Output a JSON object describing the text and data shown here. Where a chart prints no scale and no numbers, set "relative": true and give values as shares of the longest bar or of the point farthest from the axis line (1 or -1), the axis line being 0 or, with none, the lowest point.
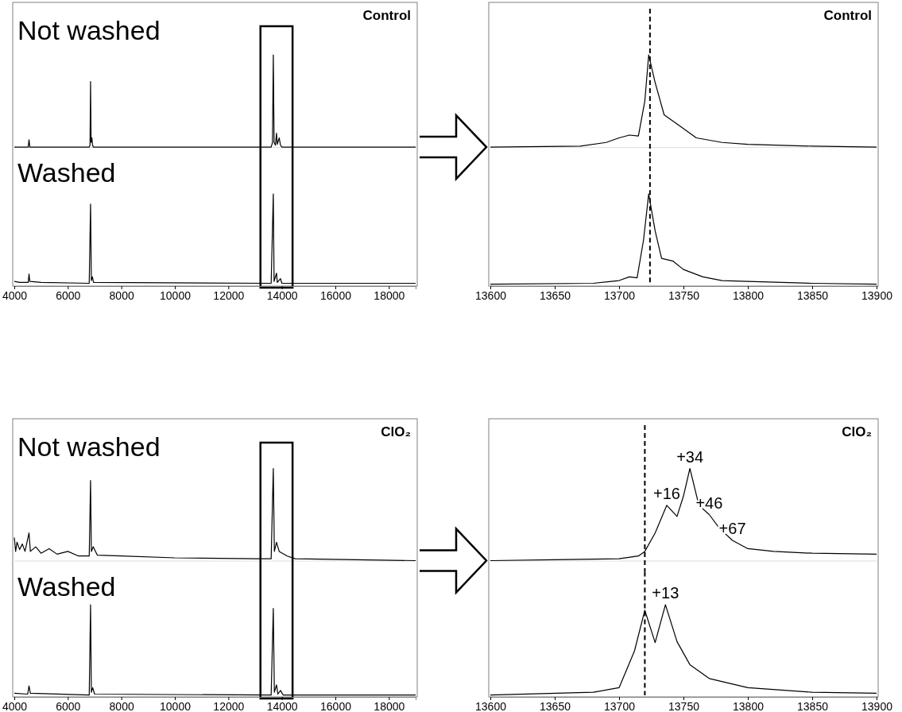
{
  "chart_data": [
    {
      "type": "line",
      "title": "Control",
      "relative": true,
      "tick_labels": false,
      "xlim": [
        4000,
        19000
      ],
      "series": [
        {
          "name": "Not washed",
          "color": "#000000",
          "x": [
            4000,
            4520,
            4550,
            4580,
            6800,
            6830,
            6850,
            6870,
            6900,
            6920,
            6950,
            13600,
            13650,
            13680,
            13710,
            13760,
            13800,
            13830,
            13900,
            13950,
            14000,
            19000
          ],
          "values": [
            0,
            0,
            0.08,
            0,
            0,
            0.02,
            0.71,
            0.05,
            0.1,
            0.03,
            0,
            0,
            0.05,
            1.0,
            0.05,
            0.02,
            0.15,
            0.03,
            0.1,
            0.02,
            0,
            0
          ]
        }
      ]
    },
    {
      "type": "line",
      "relative": true,
      "tick_labels": "x",
      "xlim": [
        4000,
        19000
      ],
      "xticks": [
        4000,
        6000,
        8000,
        10000,
        12000,
        14000,
        16000,
        18000
      ],
      "series": [
        {
          "name": "Washed",
          "color": "#000000",
          "x": [
            4000,
            4200,
            4520,
            4550,
            4580,
            5000,
            6800,
            6850,
            6880,
            6920,
            6960,
            13600,
            13680,
            13710,
            13800,
            13830,
            13950,
            14000,
            19000
          ],
          "values": [
            0.05,
            0.04,
            0.04,
            0.13,
            0.05,
            0.04,
            0.03,
            0.89,
            0.06,
            0.1,
            0.04,
            0.03,
            1.0,
            0.05,
            0.14,
            0.04,
            0.08,
            0.03,
            0.03
          ]
        }
      ]
    },
    {
      "type": "line",
      "title": "Control",
      "relative": true,
      "tick_labels": false,
      "xlim": [
        13600,
        13900
      ],
      "ref_lines": [
        {
          "axis": "x",
          "value": 13724,
          "line_style": "dashed"
        }
      ],
      "series": [
        {
          "color": "#000000",
          "x": [
            13600,
            13670,
            13690,
            13700,
            13708,
            13715,
            13720,
            13723,
            13728,
            13735,
            13745,
            13760,
            13780,
            13800,
            13850,
            13900
          ],
          "values": [
            0,
            0.01,
            0.05,
            0.1,
            0.13,
            0.12,
            0.5,
            1.0,
            0.7,
            0.35,
            0.25,
            0.1,
            0.05,
            0.03,
            0.01,
            0
          ]
        }
      ]
    },
    {
      "type": "line",
      "relative": true,
      "tick_labels": "x",
      "xlim": [
        13600,
        13900
      ],
      "xticks": [
        13600,
        13650,
        13700,
        13750,
        13800,
        13850,
        13900
      ],
      "ref_lines": [
        {
          "axis": "x",
          "value": 13724,
          "line_style": "dashed"
        }
      ],
      "series": [
        {
          "color": "#000000",
          "x": [
            13600,
            13680,
            13700,
            13708,
            13714,
            13719,
            13723,
            13728,
            13733,
            13742,
            13750,
            13765,
            13780,
            13800,
            13850,
            13900
          ],
          "values": [
            0.02,
            0.03,
            0.06,
            0.1,
            0.09,
            0.5,
            1.0,
            0.6,
            0.3,
            0.27,
            0.18,
            0.1,
            0.06,
            0.05,
            0.03,
            0.02
          ]
        }
      ]
    },
    {
      "type": "line",
      "title": "ClO₂",
      "relative": true,
      "tick_labels": false,
      "xlim": [
        4000,
        19000
      ],
      "series": [
        {
          "name": "Not washed",
          "color": "#000000",
          "x": [
            4000,
            4050,
            4100,
            4200,
            4300,
            4400,
            4550,
            4600,
            4800,
            5000,
            5300,
            5600,
            6000,
            6400,
            6800,
            6850,
            6880,
            6950,
            7100,
            8000,
            10000,
            13000,
            13600,
            13680,
            13720,
            13800,
            13900,
            14200,
            14500,
            19000
          ],
          "values": [
            0.25,
            0.1,
            0.2,
            0.12,
            0.18,
            0.1,
            0.3,
            0.1,
            0.15,
            0.08,
            0.13,
            0.07,
            0.1,
            0.05,
            0.05,
            0.87,
            0.1,
            0.15,
            0.06,
            0.05,
            0.03,
            0.02,
            0.02,
            1.0,
            0.1,
            0.2,
            0.1,
            0.05,
            0.02,
            0
          ]
        }
      ]
    },
    {
      "type": "line",
      "relative": true,
      "tick_labels": "x",
      "xlim": [
        4000,
        19000
      ],
      "xticks": [
        4000,
        6000,
        8000,
        10000,
        12000,
        14000,
        16000,
        18000
      ],
      "series": [
        {
          "name": "Washed",
          "color": "#000000",
          "x": [
            4000,
            4500,
            4550,
            4600,
            6800,
            6850,
            6880,
            6930,
            7000,
            13600,
            13680,
            13720,
            13800,
            13850,
            13950,
            14050,
            19000
          ],
          "values": [
            0.04,
            0.03,
            0.12,
            0.04,
            0.02,
            1.0,
            0.05,
            0.1,
            0.03,
            0.02,
            0.96,
            0.05,
            0.13,
            0.03,
            0.07,
            0.02,
            0.02
          ]
        }
      ]
    },
    {
      "type": "line",
      "title": "ClO₂",
      "relative": true,
      "tick_labels": false,
      "xlim": [
        13600,
        13900
      ],
      "ref_lines": [
        {
          "axis": "x",
          "value": 13720,
          "line_style": "dashed"
        }
      ],
      "annotations": [
        {
          "text": "+16",
          "x": 13737,
          "y": 0.6
        },
        {
          "text": "+34",
          "x": 13755,
          "y": 1.0
        },
        {
          "text": "+46",
          "x": 13770,
          "y": 0.5
        },
        {
          "text": "+67",
          "x": 13788,
          "y": 0.22
        }
      ],
      "series": [
        {
          "color": "#000000",
          "x": [
            13600,
            13650,
            13700,
            13715,
            13720,
            13728,
            13737,
            13745,
            13750,
            13755,
            13762,
            13770,
            13778,
            13788,
            13800,
            13820,
            13850,
            13900
          ],
          "values": [
            0,
            0.01,
            0.02,
            0.05,
            0.1,
            0.3,
            0.6,
            0.48,
            0.7,
            1.0,
            0.6,
            0.5,
            0.35,
            0.22,
            0.13,
            0.1,
            0.08,
            0.07
          ]
        }
      ]
    },
    {
      "type": "line",
      "relative": true,
      "tick_labels": "x",
      "xlim": [
        13600,
        13900
      ],
      "xticks": [
        13600,
        13650,
        13700,
        13750,
        13800,
        13850,
        13900
      ],
      "ref_lines": [
        {
          "axis": "x",
          "value": 13720,
          "line_style": "dashed"
        }
      ],
      "annotations": [
        {
          "text": "+13",
          "x": 13736,
          "y": 1.0
        }
      ],
      "series": [
        {
          "color": "#000000",
          "x": [
            13600,
            13680,
            13700,
            13712,
            13720,
            13728,
            13736,
            13745,
            13755,
            13770,
            13800,
            13850,
            13900
          ],
          "values": [
            0.02,
            0.05,
            0.1,
            0.5,
            0.94,
            0.59,
            1.0,
            0.6,
            0.35,
            0.2,
            0.1,
            0.05,
            0.04
          ]
        }
      ]
    }
  ]
}
